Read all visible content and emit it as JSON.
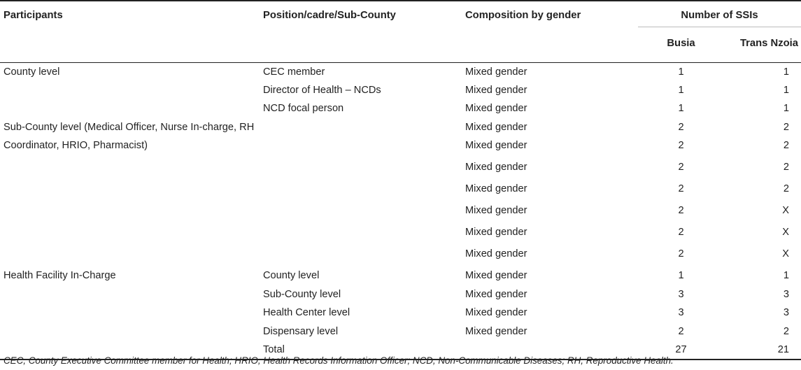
{
  "header": {
    "participants": "Participants",
    "position": "Position/cadre/Sub-County",
    "composition": "Composition by gender",
    "ssis": "Number of SSIs",
    "busia": "Busia",
    "trans_nzoia": "Trans Nzoia"
  },
  "rows": [
    {
      "participants": "County level",
      "position": "CEC member",
      "composition": "Mixed gender",
      "busia": "1",
      "trans_nzoia": "1"
    },
    {
      "participants": "",
      "position": "Director of Health – NCDs",
      "composition": "Mixed gender",
      "busia": "1",
      "trans_nzoia": "1"
    },
    {
      "participants": "",
      "position": "NCD focal person",
      "composition": "Mixed gender",
      "busia": "1",
      "trans_nzoia": "1"
    },
    {
      "participants": "Sub-County level (Medical Officer, Nurse In-charge, RH Coordinator, HRIO, Pharmacist)",
      "position": "",
      "composition": "Mixed gender",
      "busia": "2",
      "trans_nzoia": "2"
    },
    {
      "participants": "",
      "position": "",
      "composition": "Mixed gender",
      "busia": "2",
      "trans_nzoia": "2"
    },
    {
      "participants": "",
      "position": "",
      "composition": "Mixed gender",
      "busia": "2",
      "trans_nzoia": "2"
    },
    {
      "participants": "",
      "position": "",
      "composition": "Mixed gender",
      "busia": "2",
      "trans_nzoia": "2"
    },
    {
      "participants": "",
      "position": "",
      "composition": "Mixed gender",
      "busia": "2",
      "trans_nzoia": "X"
    },
    {
      "participants": "",
      "position": "",
      "composition": "Mixed gender",
      "busia": "2",
      "trans_nzoia": "X"
    },
    {
      "participants": "",
      "position": "",
      "composition": "Mixed gender",
      "busia": "2",
      "trans_nzoia": "X"
    },
    {
      "participants": "Health Facility In-Charge",
      "position": "County level",
      "composition": "Mixed gender",
      "busia": "1",
      "trans_nzoia": "1"
    },
    {
      "participants": "",
      "position": "Sub-County level",
      "composition": "Mixed gender",
      "busia": "3",
      "trans_nzoia": "3"
    },
    {
      "participants": "",
      "position": "Health Center level",
      "composition": "Mixed gender",
      "busia": "3",
      "trans_nzoia": "3"
    },
    {
      "participants": "",
      "position": "Dispensary level",
      "composition": "Mixed gender",
      "busia": "2",
      "trans_nzoia": "2"
    },
    {
      "participants": "",
      "position": "Total",
      "composition": "",
      "busia": "27",
      "trans_nzoia": "21"
    }
  ],
  "footnote": "CEC, County Executive Committee member for Health; HRIO, Health Records Information Officer; NCD, Non-Communicable Diseases; RH, Reproductive Health."
}
